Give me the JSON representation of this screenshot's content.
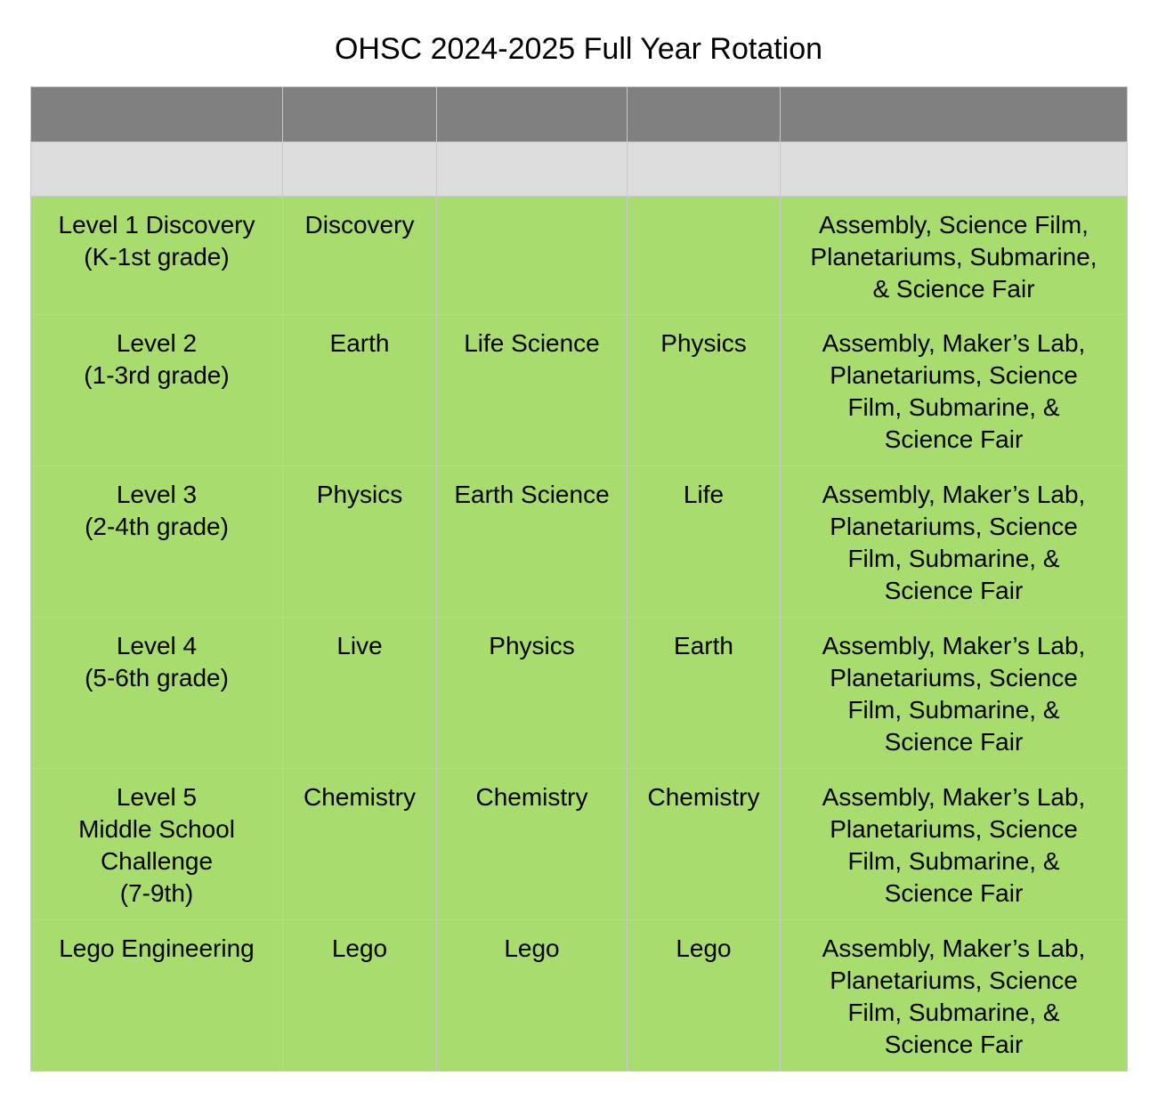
{
  "title": "OHSC 2024-2025 Full Year Rotation",
  "colors": {
    "header_dark": "#808080",
    "header_light": "#dcdcdc",
    "row_fill": "#a9dc6f",
    "grid_line": "#c8c8c8"
  },
  "table": {
    "rows": [
      {
        "level": "Level 1 Discovery\n(K-1st grade)",
        "c1": "Discovery",
        "c2": "",
        "c3": "",
        "extras": "Assembly, Science Film,\nPlanetariums, Submarine,\n& Science Fair"
      },
      {
        "level": "Level 2\n(1-3rd grade)",
        "c1": "Earth",
        "c2": "Life Science",
        "c3": "Physics",
        "extras": "Assembly, Maker’s Lab,\nPlanetariums, Science\nFilm, Submarine, &\nScience Fair"
      },
      {
        "level": "Level 3\n(2-4th grade)",
        "c1": "Physics",
        "c2": "Earth Science",
        "c3": "Life",
        "extras": "Assembly, Maker’s Lab,\nPlanetariums, Science\nFilm, Submarine, &\nScience Fair"
      },
      {
        "level": "Level 4\n(5-6th grade)",
        "c1": "Live",
        "c2": "Physics",
        "c3": "Earth",
        "extras": "Assembly, Maker’s Lab,\nPlanetariums, Science\nFilm, Submarine, &\nScience Fair"
      },
      {
        "level": "Level 5\nMiddle School\nChallenge\n(7-9th)",
        "c1": "Chemistry",
        "c2": "Chemistry",
        "c3": "Chemistry",
        "extras": "Assembly, Maker’s Lab,\nPlanetariums, Science\nFilm, Submarine, &\nScience Fair"
      },
      {
        "level": "Lego Engineering",
        "c1": "Lego",
        "c2": "Lego",
        "c3": "Lego",
        "extras": "Assembly, Maker’s Lab,\nPlanetariums, Science\nFilm, Submarine, &\nScience Fair"
      }
    ]
  }
}
